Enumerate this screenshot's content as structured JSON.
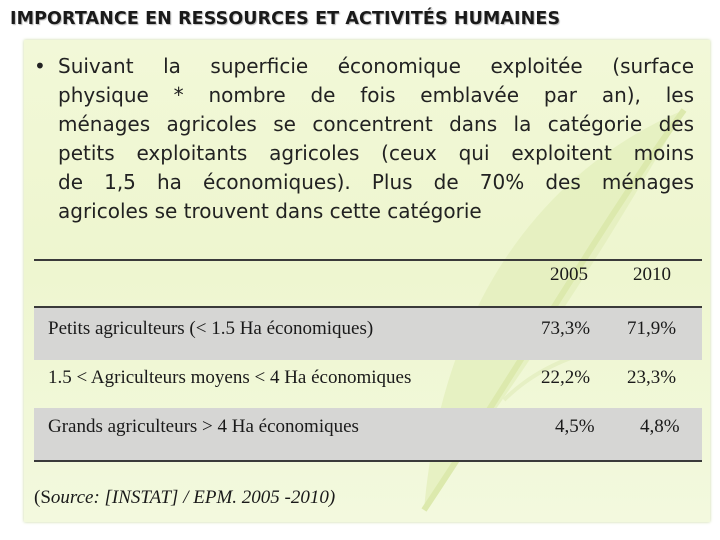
{
  "title": "IMPORTANCE EN RESSOURCES ET ACTIVITÉS HUMAINES",
  "bullet": {
    "symbol": "•",
    "lines": [
      "Suivant la superficie économique exploitée (surface",
      "physique * nombre de fois emblavée par an), les",
      "ménages agricoles se concentrent dans la catégorie des",
      "petits exploitants agricoles (ceux qui exploitent moins",
      "de 1,5 ha économiques). Plus de 70% des ménages",
      "agricoles se trouvent dans cette catégorie"
    ]
  },
  "table": {
    "headers": [
      "2005",
      "2010"
    ],
    "rows": [
      {
        "label": "Petits agriculteurs (< 1.5 Ha économiques)",
        "v2005": "73,3%",
        "v2010": "71,9%"
      },
      {
        "label": "1.5 < Agriculteurs moyens < 4 Ha économiques",
        "v2005": "22,2%",
        "v2010": "23,3%"
      },
      {
        "label": "Grands agriculteurs > 4 Ha économiques",
        "v2005": "4,5%",
        "v2010": "4,8%"
      }
    ]
  },
  "source": {
    "open": "(S",
    "text": "ource: [INSTAT] / EPM. 2005 -2010)"
  },
  "colors": {
    "panel": "#eef6cf",
    "row_band": "#d6d6d4",
    "rule": "#3a3a3a"
  }
}
